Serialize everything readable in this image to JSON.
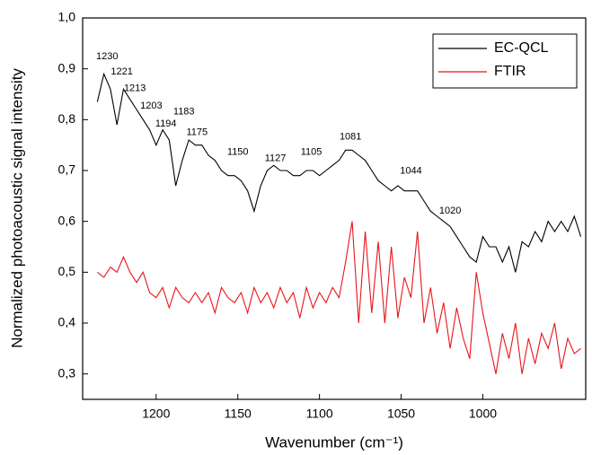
{
  "chart_data": {
    "type": "line",
    "xlabel": "Wavenumber (cm⁻¹)",
    "ylabel": "Normalized photoacoustic signal intensity",
    "x": [
      1236,
      1232,
      1228,
      1224,
      1220,
      1216,
      1212,
      1208,
      1204,
      1200,
      1196,
      1192,
      1188,
      1184,
      1180,
      1176,
      1172,
      1168,
      1164,
      1160,
      1156,
      1152,
      1148,
      1144,
      1140,
      1136,
      1132,
      1128,
      1124,
      1120,
      1116,
      1112,
      1108,
      1104,
      1100,
      1096,
      1092,
      1088,
      1084,
      1080,
      1076,
      1072,
      1068,
      1064,
      1060,
      1056,
      1052,
      1048,
      1044,
      1040,
      1036,
      1032,
      1028,
      1024,
      1020,
      1016,
      1012,
      1008,
      1004,
      1000,
      996,
      992,
      988,
      984,
      980,
      976,
      972,
      968,
      964,
      960,
      956,
      952,
      948,
      944,
      940
    ],
    "series": [
      {
        "name": "EC-QCL",
        "color": "#000000",
        "values": [
          0.835,
          0.89,
          0.86,
          0.79,
          0.86,
          0.84,
          0.82,
          0.8,
          0.78,
          0.75,
          0.78,
          0.76,
          0.67,
          0.72,
          0.76,
          0.75,
          0.75,
          0.73,
          0.72,
          0.7,
          0.69,
          0.69,
          0.68,
          0.66,
          0.62,
          0.67,
          0.7,
          0.71,
          0.7,
          0.7,
          0.69,
          0.69,
          0.7,
          0.7,
          0.69,
          0.7,
          0.71,
          0.72,
          0.74,
          0.74,
          0.73,
          0.72,
          0.7,
          0.68,
          0.67,
          0.66,
          0.67,
          0.66,
          0.66,
          0.66,
          0.64,
          0.62,
          0.61,
          0.6,
          0.59,
          0.57,
          0.55,
          0.53,
          0.52,
          0.57,
          0.55,
          0.55,
          0.52,
          0.55,
          0.5,
          0.56,
          0.55,
          0.58,
          0.56,
          0.6,
          0.58,
          0.6,
          0.58,
          0.61,
          0.57
        ]
      },
      {
        "name": "FTIR",
        "color": "#e8141a",
        "values": [
          0.5,
          0.49,
          0.51,
          0.5,
          0.53,
          0.5,
          0.48,
          0.5,
          0.46,
          0.45,
          0.47,
          0.43,
          0.47,
          0.45,
          0.44,
          0.46,
          0.44,
          0.46,
          0.42,
          0.47,
          0.45,
          0.44,
          0.46,
          0.42,
          0.47,
          0.44,
          0.46,
          0.43,
          0.47,
          0.44,
          0.46,
          0.41,
          0.47,
          0.43,
          0.46,
          0.44,
          0.47,
          0.45,
          0.52,
          0.6,
          0.4,
          0.58,
          0.42,
          0.56,
          0.4,
          0.55,
          0.41,
          0.49,
          0.45,
          0.58,
          0.4,
          0.47,
          0.38,
          0.44,
          0.35,
          0.43,
          0.37,
          0.33,
          0.5,
          0.42,
          0.36,
          0.3,
          0.38,
          0.33,
          0.4,
          0.3,
          0.37,
          0.32,
          0.38,
          0.35,
          0.4,
          0.31,
          0.37,
          0.34,
          0.35
        ]
      }
    ],
    "annotations": [
      {
        "text": "1230",
        "x": 1230,
        "y": 0.924
      },
      {
        "text": "1221",
        "x": 1221,
        "y": 0.894
      },
      {
        "text": "1213",
        "x": 1213,
        "y": 0.861
      },
      {
        "text": "1203",
        "x": 1203,
        "y": 0.827
      },
      {
        "text": "1194",
        "x": 1194,
        "y": 0.792
      },
      {
        "text": "1183",
        "x": 1183,
        "y": 0.815
      },
      {
        "text": "1175",
        "x": 1175,
        "y": 0.775
      },
      {
        "text": "1150",
        "x": 1150,
        "y": 0.736
      },
      {
        "text": "1127",
        "x": 1127,
        "y": 0.724
      },
      {
        "text": "1105",
        "x": 1105,
        "y": 0.736
      },
      {
        "text": "1081",
        "x": 1081,
        "y": 0.766
      },
      {
        "text": "1044",
        "x": 1044,
        "y": 0.699
      },
      {
        "text": "1020",
        "x": 1020,
        "y": 0.62
      }
    ],
    "xlim": [
      1245,
      937
    ],
    "xticks": [
      1200,
      1150,
      1100,
      1050,
      1000
    ],
    "ylim": [
      0.25,
      1.0
    ],
    "yticks": [
      {
        "value": 0.3,
        "label": "0,3"
      },
      {
        "value": 0.4,
        "label": "0,4"
      },
      {
        "value": 0.5,
        "label": "0,5"
      },
      {
        "value": 0.6,
        "label": "0,6"
      },
      {
        "value": 0.7,
        "label": "0,7"
      },
      {
        "value": 0.8,
        "label": "0,8"
      },
      {
        "value": 0.9,
        "label": "0,9"
      },
      {
        "value": 1.0,
        "label": "1,0"
      }
    ],
    "grid": false,
    "legend": "upper right"
  }
}
